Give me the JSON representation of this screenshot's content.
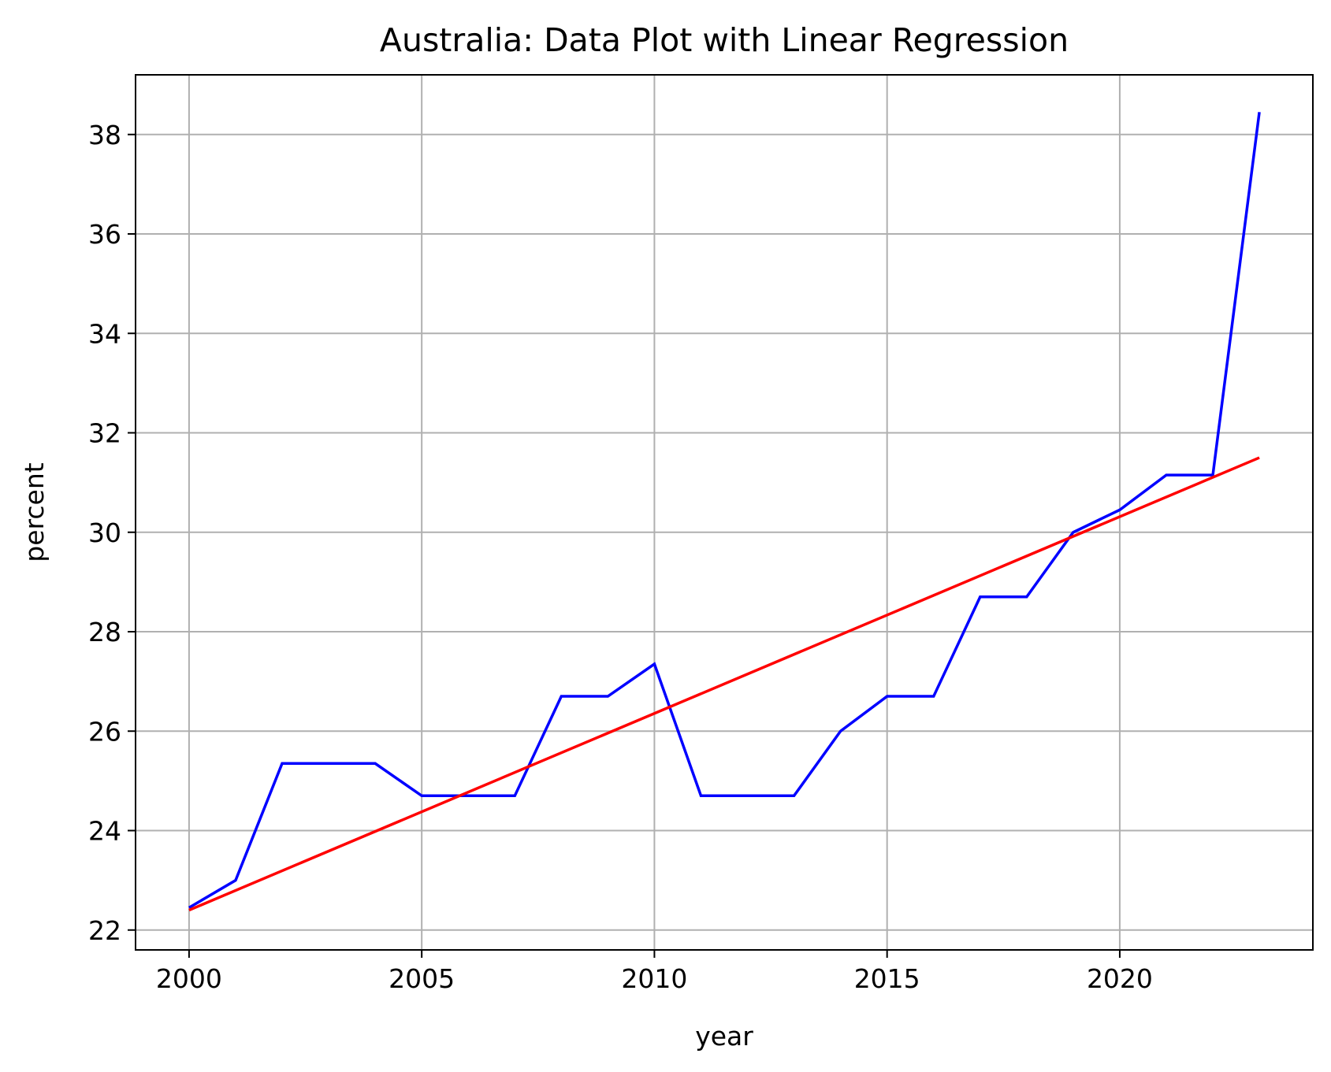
{
  "chart_data": {
    "type": "line",
    "title": "Australia: Data Plot with Linear Regression",
    "xlabel": "year",
    "ylabel": "percent",
    "xlim": [
      1998.85,
      2024.15
    ],
    "ylim": [
      21.6,
      39.2
    ],
    "xticks": [
      2000,
      2005,
      2010,
      2015,
      2020
    ],
    "yticks": [
      22,
      24,
      26,
      28,
      30,
      32,
      34,
      36,
      38
    ],
    "grid": true,
    "legend": "none",
    "series": [
      {
        "color": "#0000ff",
        "x": [
          2000,
          2001,
          2002,
          2003,
          2004,
          2005,
          2006,
          2007,
          2008,
          2009,
          2010,
          2011,
          2012,
          2013,
          2014,
          2015,
          2016,
          2017,
          2018,
          2019,
          2020,
          2021,
          2022,
          2023
        ],
        "values": [
          22.45,
          23.0,
          25.35,
          25.35,
          25.35,
          24.7,
          24.7,
          24.7,
          26.7,
          26.7,
          27.35,
          24.7,
          24.7,
          24.7,
          26.0,
          26.7,
          26.7,
          28.7,
          28.7,
          30.0,
          30.45,
          31.15,
          31.15,
          38.45
        ]
      },
      {
        "color": "#ff0000",
        "x": [
          2000,
          2023
        ],
        "values": [
          22.4,
          31.5
        ]
      }
    ]
  }
}
